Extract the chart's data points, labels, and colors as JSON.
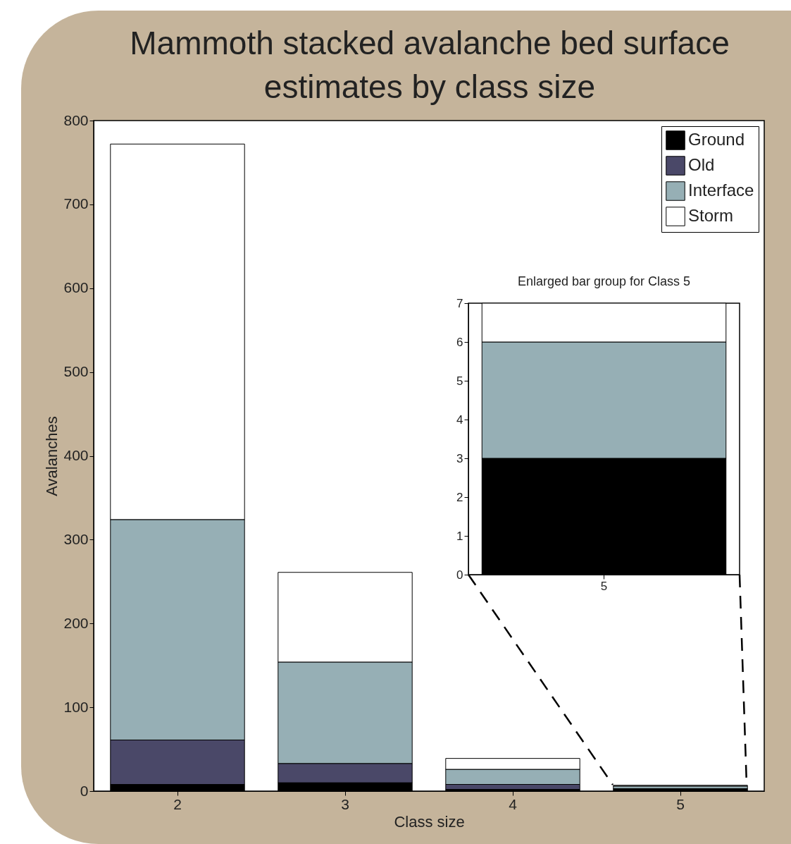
{
  "chart_data": [
    {
      "type": "bar",
      "title": "Mammoth stacked avalanche bed surface estimates by class size",
      "xlabel": "Class size",
      "ylabel": "Avalanches",
      "categories": [
        "2",
        "3",
        "4",
        "5"
      ],
      "stacked": true,
      "ylim": [
        0,
        800
      ],
      "yticks": [
        0,
        100,
        200,
        300,
        400,
        500,
        600,
        700,
        800
      ],
      "legend": "top right",
      "series": [
        {
          "name": "Ground",
          "color": "#000000",
          "values": [
            8,
            10,
            2,
            3
          ]
        },
        {
          "name": "Old",
          "color": "#4a4868",
          "values": [
            53,
            23,
            6,
            0
          ]
        },
        {
          "name": "Interface",
          "color": "#96afb5",
          "values": [
            263,
            121,
            18,
            3
          ]
        },
        {
          "name": "Storm",
          "color": "#ffffff",
          "values": [
            448,
            107,
            13,
            1
          ]
        }
      ]
    },
    {
      "type": "bar",
      "title": "Enlarged bar group for Class 5",
      "categories": [
        "5"
      ],
      "stacked": true,
      "ylim": [
        0,
        7
      ],
      "yticks": [
        0,
        1,
        2,
        3,
        4,
        5,
        6,
        7
      ],
      "series": [
        {
          "color": "#000000",
          "values": [
            3
          ]
        },
        {
          "color": "#4a4868",
          "values": [
            0
          ]
        },
        {
          "color": "#96afb5",
          "values": [
            3
          ]
        },
        {
          "color": "#ffffff",
          "values": [
            1
          ]
        }
      ]
    }
  ]
}
